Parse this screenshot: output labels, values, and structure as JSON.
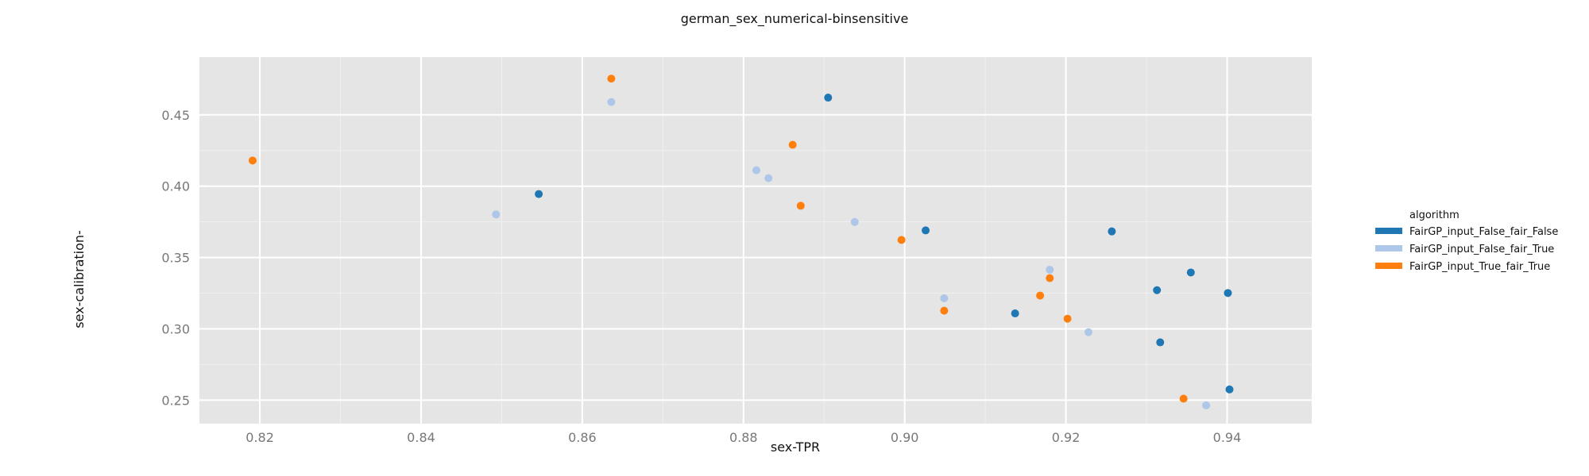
{
  "chart_data": {
    "type": "scatter",
    "title": "german_sex_numerical-binsensitive",
    "xlabel": "sex-TPR",
    "ylabel": "sex-calibration-",
    "xlim": [
      0.8125,
      0.9505
    ],
    "ylim": [
      0.2335,
      0.4905
    ],
    "xticks": [
      0.82,
      0.84,
      0.86,
      0.88,
      0.9,
      0.92,
      0.94
    ],
    "xtick_labels": [
      "0.82",
      "0.84",
      "0.86",
      "0.88",
      "0.90",
      "0.92",
      "0.94"
    ],
    "yticks": [
      0.25,
      0.3,
      0.35,
      0.4,
      0.45
    ],
    "ytick_labels": [
      "0.25",
      "0.30",
      "0.35",
      "0.40",
      "0.45"
    ],
    "grid": true,
    "legend": {
      "title": "algorithm",
      "placement": "right"
    },
    "series": [
      {
        "name": "FairGP_input_False_fair_False",
        "color": "#1f77b4",
        "points": [
          [
            0.8546,
            0.3945
          ],
          [
            0.8905,
            0.4621
          ],
          [
            0.9026,
            0.369
          ],
          [
            0.9257,
            0.3683
          ],
          [
            0.9137,
            0.3108
          ],
          [
            0.9313,
            0.3271
          ],
          [
            0.9355,
            0.3395
          ],
          [
            0.9401,
            0.3251
          ],
          [
            0.9317,
            0.2905
          ],
          [
            0.9403,
            0.2575
          ]
        ]
      },
      {
        "name": "FairGP_input_False_fair_True",
        "color": "#aec7e8",
        "points": [
          [
            0.8493,
            0.3802
          ],
          [
            0.8636,
            0.459
          ],
          [
            0.8816,
            0.4112
          ],
          [
            0.8831,
            0.4056
          ],
          [
            0.8938,
            0.3749
          ],
          [
            0.9049,
            0.3214
          ],
          [
            0.918,
            0.3414
          ],
          [
            0.9228,
            0.2976
          ],
          [
            0.9374,
            0.2463
          ]
        ]
      },
      {
        "name": "FairGP_input_True_fair_True",
        "color": "#ff7f0e",
        "points": [
          [
            0.8191,
            0.418
          ],
          [
            0.8636,
            0.4754
          ],
          [
            0.8861,
            0.429
          ],
          [
            0.8871,
            0.3863
          ],
          [
            0.8996,
            0.3623
          ],
          [
            0.9049,
            0.3127
          ],
          [
            0.9168,
            0.3233
          ],
          [
            0.918,
            0.3355
          ],
          [
            0.9202,
            0.3071
          ],
          [
            0.9346,
            0.251
          ]
        ]
      }
    ]
  }
}
